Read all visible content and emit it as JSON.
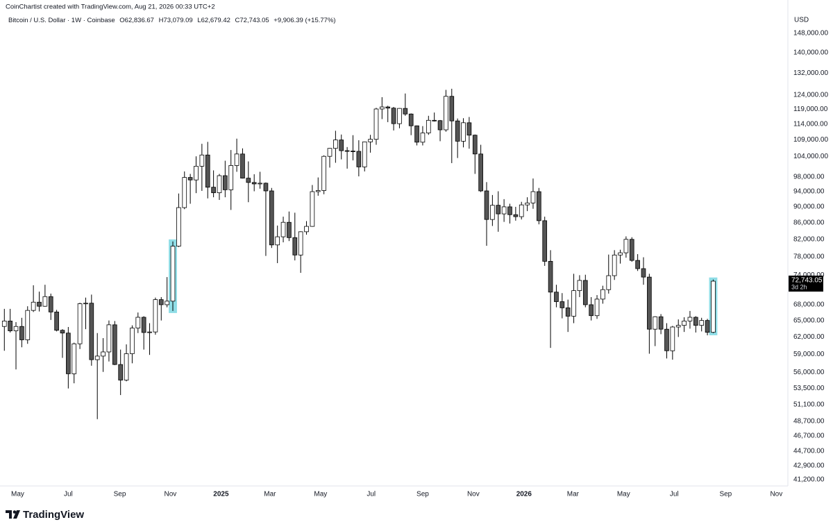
{
  "chart_data": {
    "type": "candlestick",
    "watermark": "CoinChartist created with TradingView.com, Aug 21, 2026 00:33 UTC+2",
    "symbol": "Bitcoin / U.S. Dollar · 1W · Coinbase",
    "ohlc_labels": [
      "O62,836.67",
      "H73,079.09",
      "L62,679.42",
      "C72,743.05"
    ],
    "change_label": "+9,906.39 (+15.77%)",
    "currency": "USD",
    "last_price_label": "72,743.05",
    "countdown": "3d 2h",
    "brand": "TradingView",
    "y_scale": "log",
    "grid": false,
    "up_color": "#ffffff",
    "down_color": "#555555",
    "border_color": "#000000",
    "highlight_color": "#8fdde6",
    "highlight_candles": [
      29,
      122
    ],
    "xlim": [
      -0.75,
      134.85
    ],
    "xticks": [
      {
        "value": 2.29,
        "label": "May"
      },
      {
        "value": 11.0,
        "label": "Jul"
      },
      {
        "value": 19.86,
        "label": "Sep"
      },
      {
        "value": 28.57,
        "label": "Nov"
      },
      {
        "value": 37.29,
        "label": "2025"
      },
      {
        "value": 45.71,
        "label": "Mar"
      },
      {
        "value": 54.43,
        "label": "May"
      },
      {
        "value": 63.14,
        "label": "Jul"
      },
      {
        "value": 72.0,
        "label": "Sep"
      },
      {
        "value": 80.71,
        "label": "Nov"
      },
      {
        "value": 89.43,
        "label": "2026"
      },
      {
        "value": 97.86,
        "label": "Mar"
      },
      {
        "value": 106.57,
        "label": "May"
      },
      {
        "value": 115.29,
        "label": "Jul"
      },
      {
        "value": 124.14,
        "label": "Sep"
      },
      {
        "value": 132.86,
        "label": "Nov"
      }
    ],
    "ylim": [
      40470,
      157000
    ],
    "yticks": [
      {
        "value": 148000,
        "label": "148,000.00"
      },
      {
        "value": 140000,
        "label": "140,000.00"
      },
      {
        "value": 132000,
        "label": "132,000.00"
      },
      {
        "value": 124000,
        "label": "124,000.00"
      },
      {
        "value": 119000,
        "label": "119,000.00"
      },
      {
        "value": 114000,
        "label": "114,000.00"
      },
      {
        "value": 109000,
        "label": "109,000.00"
      },
      {
        "value": 104000,
        "label": "104,000.00"
      },
      {
        "value": 98000,
        "label": "98,000.00"
      },
      {
        "value": 94000,
        "label": "94,000.00"
      },
      {
        "value": 90000,
        "label": "90,000.00"
      },
      {
        "value": 86000,
        "label": "86,000.00"
      },
      {
        "value": 82000,
        "label": "82,000.00"
      },
      {
        "value": 78000,
        "label": "78,000.00"
      },
      {
        "value": 74000,
        "label": "74,000.00"
      },
      {
        "value": 68000,
        "label": "68,000.00"
      },
      {
        "value": 65000,
        "label": "65,000.00"
      },
      {
        "value": 62000,
        "label": "62,000.00"
      },
      {
        "value": 59000,
        "label": "59,000.00"
      },
      {
        "value": 56000,
        "label": "56,000.00"
      },
      {
        "value": 53500,
        "label": "53,500.00"
      },
      {
        "value": 51100,
        "label": "51,100.00"
      },
      {
        "value": 48700,
        "label": "48,700.00"
      },
      {
        "value": 46700,
        "label": "46,700.00"
      },
      {
        "value": 44700,
        "label": "44,700.00"
      },
      {
        "value": 42900,
        "label": "42,900.00"
      },
      {
        "value": 41200,
        "label": "41,200.00"
      }
    ],
    "open": [
      63900,
      64900,
      63100,
      63900,
      61500,
      66900,
      68500,
      67700,
      69600,
      66600,
      63200,
      62700,
      55800,
      60800,
      68200,
      68300,
      58100,
      58700,
      59400,
      64200,
      57300,
      54800,
      59100,
      63600,
      65600,
      62800,
      62900,
      69000,
      68000,
      68700,
      80400,
      89800,
      97900,
      97200,
      101100,
      104400,
      95200,
      93700,
      98400,
      94500,
      101300,
      104700,
      97700,
      96500,
      96100,
      96300,
      94200,
      80700,
      82600,
      86100,
      82400,
      78400,
      83800,
      85100,
      94000,
      94300,
      104000,
      106400,
      109000,
      105700,
      105600,
      105500,
      100900,
      108400,
      109200,
      119100,
      119800,
      119400,
      114200,
      119300,
      117400,
      113500,
      108300,
      111200,
      115300,
      115200,
      112200,
      123500,
      115100,
      108600,
      114500,
      110500,
      104700,
      94200,
      86800,
      90400,
      88200,
      90000,
      88000,
      87500,
      90500,
      91000,
      94000,
      86500,
      77000,
      70500,
      68600,
      67400,
      65800,
      70800,
      72900,
      68000,
      65900,
      69100,
      71000,
      73900,
      78400,
      78900,
      82000,
      77200,
      75400,
      73600,
      63400,
      65700,
      63400,
      59600,
      63800,
      64100,
      64900,
      65600,
      64100,
      65000,
      62836.67
    ],
    "high": [
      67200,
      67200,
      64700,
      65500,
      67700,
      71900,
      70600,
      72000,
      70200,
      67000,
      63400,
      63800,
      61000,
      68400,
      69400,
      70000,
      62700,
      61800,
      65000,
      64900,
      59800,
      60700,
      64100,
      66500,
      65800,
      64500,
      69400,
      69500,
      73600,
      81500,
      93500,
      99600,
      98900,
      104000,
      107800,
      108400,
      99900,
      98900,
      102700,
      105900,
      109400,
      106400,
      102500,
      98800,
      99500,
      96500,
      95000,
      85300,
      87500,
      88800,
      88500,
      83900,
      86400,
      95800,
      97900,
      104300,
      106500,
      111900,
      110700,
      106800,
      110500,
      108900,
      108500,
      110600,
      119500,
      123200,
      120200,
      119800,
      119400,
      124500,
      117600,
      113600,
      113400,
      116800,
      117900,
      115400,
      125800,
      126200,
      115900,
      116000,
      116400,
      110700,
      107500,
      96600,
      93100,
      94100,
      92000,
      90800,
      90000,
      91300,
      92500,
      97600,
      95000,
      87500,
      79500,
      72000,
      70300,
      69000,
      74300,
      74000,
      74100,
      69500,
      69900,
      71800,
      78500,
      79500,
      79600,
      82700,
      82500,
      78600,
      77900,
      74300,
      65800,
      66200,
      64500,
      64000,
      65200,
      65600,
      66800,
      65800,
      65500,
      65300,
      73079.09
    ],
    "low": [
      59600,
      62800,
      56500,
      60200,
      60800,
      66600,
      66700,
      67600,
      65100,
      63000,
      58400,
      53500,
      54300,
      59900,
      63400,
      57100,
      49000,
      56100,
      57800,
      57200,
      52500,
      54600,
      57500,
      62700,
      59800,
      58900,
      62400,
      65000,
      67500,
      66800,
      80200,
      89400,
      90800,
      93600,
      94200,
      92200,
      92500,
      91800,
      92500,
      89200,
      99500,
      97600,
      91200,
      94100,
      94800,
      78200,
      80000,
      76600,
      81300,
      81600,
      77200,
      74500,
      83100,
      85000,
      92900,
      93300,
      100700,
      102100,
      103100,
      100400,
      102800,
      98200,
      99600,
      105100,
      107500,
      115700,
      114700,
      112000,
      112700,
      116800,
      110500,
      107300,
      107300,
      110600,
      114900,
      108600,
      111600,
      102000,
      103500,
      106700,
      106300,
      98900,
      93900,
      80500,
      85200,
      83800,
      86200,
      85800,
      86500,
      86800,
      88900,
      89500,
      85600,
      76000,
      60100,
      67500,
      65400,
      62900,
      64500,
      69500,
      67500,
      65000,
      65300,
      68200,
      70200,
      73000,
      76500,
      77800,
      76900,
      74900,
      72000,
      59100,
      60400,
      62500,
      58300,
      58100,
      62000,
      62900,
      63500,
      62800,
      63000,
      62300,
      62679.42
    ],
    "close": [
      64900,
      63100,
      63900,
      61500,
      66900,
      68500,
      67700,
      69600,
      66600,
      63200,
      62700,
      55800,
      60800,
      68200,
      68300,
      58100,
      58700,
      59400,
      64200,
      57300,
      54800,
      59100,
      63600,
      65600,
      62800,
      62900,
      69000,
      68000,
      68700,
      80400,
      89800,
      97900,
      97200,
      101100,
      104400,
      95200,
      93700,
      98400,
      94500,
      101300,
      104700,
      97700,
      96500,
      96100,
      96300,
      94200,
      80700,
      82600,
      86100,
      82400,
      78400,
      83800,
      85100,
      94000,
      94300,
      104000,
      106400,
      109000,
      105700,
      105600,
      105500,
      100900,
      108400,
      109200,
      119100,
      119800,
      119400,
      114200,
      119300,
      117400,
      113500,
      108300,
      111200,
      115300,
      115200,
      112200,
      123500,
      115100,
      108600,
      114500,
      110500,
      104700,
      94200,
      86800,
      90400,
      88200,
      90000,
      88000,
      87500,
      90500,
      91000,
      94000,
      86500,
      77000,
      70500,
      68600,
      67400,
      65800,
      70800,
      72900,
      68000,
      65900,
      69100,
      71000,
      73900,
      78400,
      78900,
      82000,
      77200,
      75400,
      73600,
      63400,
      65700,
      63400,
      59600,
      63800,
      64100,
      64900,
      65600,
      64100,
      65000,
      62836.67,
      72743.05
    ]
  }
}
